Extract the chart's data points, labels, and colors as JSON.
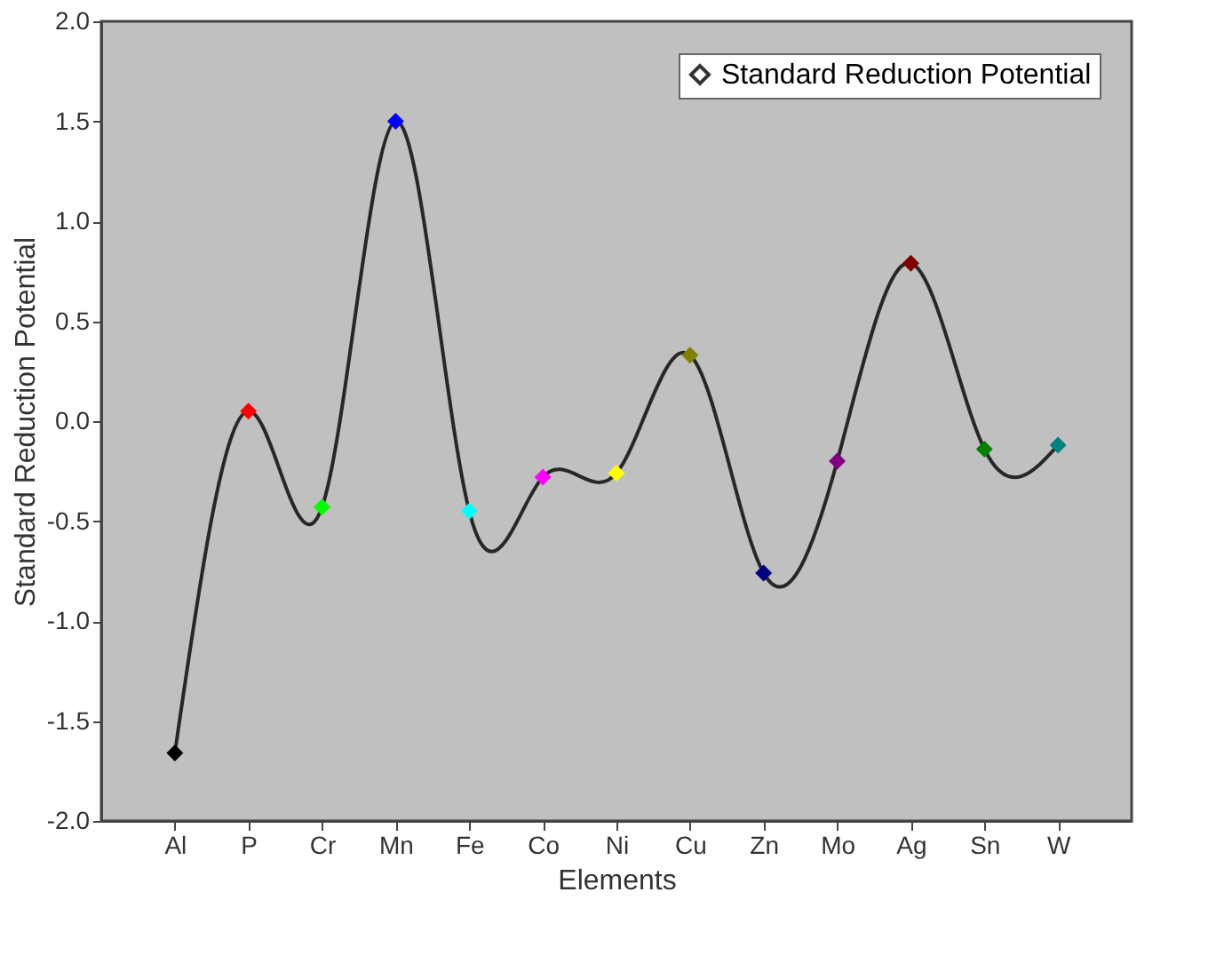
{
  "chart_data": {
    "type": "line",
    "xlabel": "Elements",
    "ylabel": "Standard Reduction Potential",
    "categories": [
      "Al",
      "P",
      "Cr",
      "Mn",
      "Fe",
      "Co",
      "Ni",
      "Cu",
      "Zn",
      "Mo",
      "Ag",
      "Sn",
      "W"
    ],
    "series": [
      {
        "name": "Standard Reduction Potential",
        "color": "#000000",
        "values": [
          -1.66,
          0.05,
          -0.43,
          1.5,
          -0.45,
          -0.28,
          -0.26,
          0.33,
          -0.76,
          -0.2,
          0.79,
          -0.14,
          -0.12
        ],
        "colors": [
          "#000000",
          "#ff0000",
          "#00ff00",
          "#0000ff",
          "#00ffff",
          "#ff00ff",
          "#ffff00",
          "#808000",
          "#000080",
          "#800080",
          "#800000",
          "#008000",
          "#008080"
        ]
      }
    ],
    "ylim": [
      -2.0,
      2.0
    ],
    "yticks": [
      {
        "value": -2,
        "label": "-2.0"
      },
      {
        "value": -1.5,
        "label": "-1.5"
      },
      {
        "value": -1,
        "label": "-1.0"
      },
      {
        "value": -0.5,
        "label": "-0.5"
      },
      {
        "value": 0,
        "label": "0.0"
      },
      {
        "value": 0.5,
        "label": "0.5"
      },
      {
        "value": 1,
        "label": "1.0"
      },
      {
        "value": 1.5,
        "label": "1.5"
      },
      {
        "value": 2,
        "label": "2.0"
      }
    ],
    "marker": "diamond",
    "line_style": "solid",
    "grid": false,
    "legend": "top right"
  }
}
